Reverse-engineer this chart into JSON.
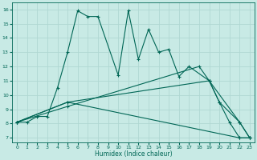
{
  "xlabel": "Humidex (Indice chaleur)",
  "background_color": "#c8eae5",
  "grid_color": "#b0d8d2",
  "line_color": "#006655",
  "xlim": [
    -0.5,
    23.5
  ],
  "ylim": [
    6.7,
    16.5
  ],
  "yticks": [
    7,
    8,
    9,
    10,
    11,
    12,
    13,
    14,
    15,
    16
  ],
  "xticks": [
    0,
    1,
    2,
    3,
    4,
    5,
    6,
    7,
    8,
    9,
    10,
    11,
    12,
    13,
    14,
    15,
    16,
    17,
    18,
    19,
    20,
    21,
    22,
    23
  ],
  "series": [
    {
      "x": [
        0,
        1,
        2,
        3,
        4,
        5,
        6,
        7,
        8,
        10,
        11,
        12,
        13,
        14,
        15,
        16,
        17,
        19,
        20,
        21,
        22,
        23
      ],
      "y": [
        8.1,
        8.1,
        8.5,
        8.5,
        10.5,
        13.0,
        15.9,
        15.5,
        15.5,
        11.4,
        15.9,
        12.5,
        14.6,
        13.0,
        13.2,
        11.3,
        12.0,
        11.0,
        9.5,
        8.1,
        7.0,
        7.0
      ]
    },
    {
      "x": [
        0,
        5,
        19,
        20,
        22,
        23
      ],
      "y": [
        8.1,
        9.5,
        11.0,
        9.5,
        8.1,
        7.0
      ]
    },
    {
      "x": [
        0,
        5,
        18,
        19,
        22,
        23
      ],
      "y": [
        8.1,
        9.2,
        12.0,
        11.0,
        8.1,
        7.0
      ]
    },
    {
      "x": [
        0,
        5,
        22,
        23
      ],
      "y": [
        8.1,
        9.5,
        7.0,
        7.0
      ]
    }
  ]
}
